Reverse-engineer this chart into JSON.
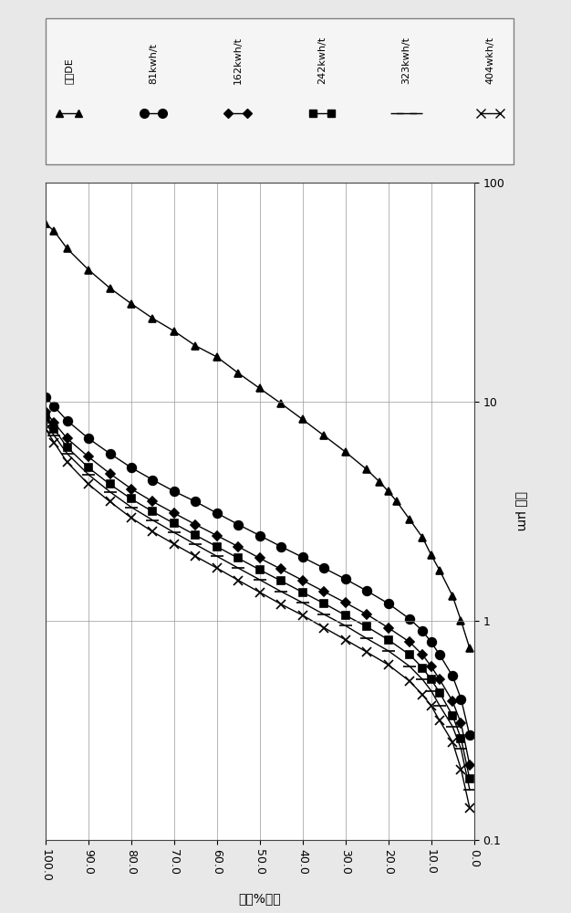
{
  "xlabel": "粒重%筛材",
  "ylabel": "粒径 μm",
  "series": [
    {
      "label": "进料DE",
      "marker": "^",
      "x": [
        100,
        98,
        95,
        90,
        85,
        80,
        75,
        70,
        65,
        60,
        55,
        50,
        45,
        40,
        35,
        30,
        25,
        22,
        20,
        18,
        15,
        12,
        10,
        8,
        5,
        3,
        1
      ],
      "y": [
        65,
        60,
        50,
        40,
        33,
        28,
        24,
        21,
        18,
        16,
        13.5,
        11.5,
        9.8,
        8.3,
        7.0,
        5.9,
        4.9,
        4.3,
        3.9,
        3.5,
        2.9,
        2.4,
        2.0,
        1.7,
        1.3,
        1.0,
        0.75
      ]
    },
    {
      "label": "81kwh/t",
      "marker": "o",
      "x": [
        100,
        98,
        95,
        90,
        85,
        80,
        75,
        70,
        65,
        60,
        55,
        50,
        45,
        40,
        35,
        30,
        25,
        20,
        15,
        12,
        10,
        8,
        5,
        3,
        1
      ],
      "y": [
        10.5,
        9.5,
        8.2,
        6.8,
        5.8,
        5.0,
        4.4,
        3.9,
        3.5,
        3.1,
        2.75,
        2.45,
        2.18,
        1.95,
        1.74,
        1.55,
        1.37,
        1.2,
        1.02,
        0.9,
        0.8,
        0.7,
        0.56,
        0.44,
        0.3
      ]
    },
    {
      "label": "162kwh/t",
      "marker": "D",
      "x": [
        100,
        98,
        95,
        90,
        85,
        80,
        75,
        70,
        65,
        60,
        55,
        50,
        45,
        40,
        35,
        30,
        25,
        20,
        15,
        12,
        10,
        8,
        5,
        3,
        1
      ],
      "y": [
        9.0,
        8.0,
        6.8,
        5.6,
        4.7,
        4.0,
        3.5,
        3.1,
        2.75,
        2.45,
        2.18,
        1.93,
        1.72,
        1.53,
        1.36,
        1.21,
        1.07,
        0.93,
        0.8,
        0.7,
        0.62,
        0.54,
        0.43,
        0.34,
        0.22
      ]
    },
    {
      "label": "242kwh/t",
      "marker": "s",
      "x": [
        100,
        98,
        95,
        90,
        85,
        80,
        75,
        70,
        65,
        60,
        55,
        50,
        45,
        40,
        35,
        30,
        25,
        20,
        15,
        12,
        10,
        8,
        5,
        3,
        1
      ],
      "y": [
        8.5,
        7.5,
        6.2,
        5.0,
        4.2,
        3.6,
        3.15,
        2.78,
        2.46,
        2.18,
        1.93,
        1.71,
        1.52,
        1.35,
        1.2,
        1.06,
        0.94,
        0.82,
        0.7,
        0.61,
        0.54,
        0.47,
        0.37,
        0.29,
        0.19
      ]
    },
    {
      "label": "323kwh/t",
      "marker": "_",
      "x": [
        100,
        98,
        95,
        90,
        85,
        80,
        75,
        70,
        65,
        60,
        55,
        50,
        45,
        40,
        35,
        30,
        25,
        20,
        15,
        12,
        10,
        8,
        5,
        3,
        1
      ],
      "y": [
        8.0,
        7.0,
        5.8,
        4.65,
        3.88,
        3.3,
        2.88,
        2.53,
        2.23,
        1.97,
        1.74,
        1.54,
        1.36,
        1.21,
        1.07,
        0.95,
        0.83,
        0.73,
        0.62,
        0.54,
        0.48,
        0.41,
        0.33,
        0.26,
        0.17
      ]
    },
    {
      "label": "404wkh/t",
      "marker": "x",
      "x": [
        100,
        98,
        95,
        90,
        85,
        80,
        75,
        70,
        65,
        60,
        55,
        50,
        45,
        40,
        35,
        30,
        25,
        20,
        15,
        12,
        10,
        8,
        5,
        3,
        1
      ],
      "y": [
        7.5,
        6.5,
        5.3,
        4.2,
        3.5,
        2.95,
        2.55,
        2.24,
        1.97,
        1.74,
        1.53,
        1.35,
        1.19,
        1.06,
        0.93,
        0.82,
        0.72,
        0.63,
        0.53,
        0.46,
        0.41,
        0.35,
        0.28,
        0.21,
        0.14
      ]
    }
  ],
  "xticks": [
    100.0,
    90.0,
    80.0,
    70.0,
    60.0,
    50.0,
    40.0,
    30.0,
    20.0,
    10.0,
    0.0
  ],
  "ytick_vals": [
    0.1,
    1.0,
    10.0,
    100.0
  ],
  "ytick_labels": [
    "0.1",
    "1",
    "10",
    "100"
  ],
  "xlim": [
    100,
    0
  ],
  "ylim": [
    0.1,
    100
  ],
  "legend_labels": [
    "进料DE",
    "81kwh/t",
    "162kwh/t",
    "242kwh/t",
    "323kwh/t",
    "404wkh/t"
  ],
  "legend_markers": [
    "^",
    "o",
    "D",
    "s",
    "_",
    "x"
  ],
  "bg_color": "#e8e8e8",
  "plot_bg": "#ffffff"
}
